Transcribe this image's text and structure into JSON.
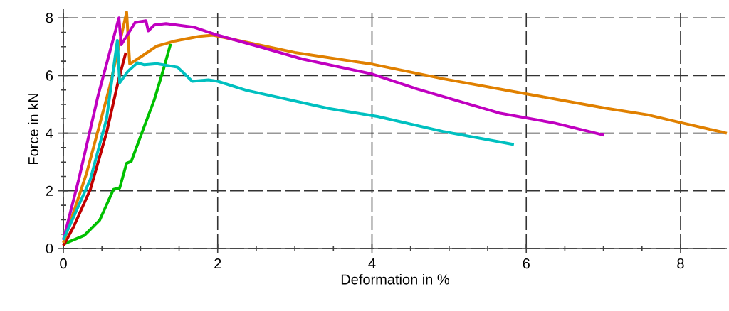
{
  "chart_data": {
    "type": "line",
    "xlabel": "Deformation in %",
    "ylabel": "Force in kN",
    "xlim": [
      0,
      8.6
    ],
    "ylim": [
      0,
      8.3
    ],
    "xticks": [
      0,
      2,
      4,
      6,
      8
    ],
    "yticks": [
      0,
      2,
      4,
      6,
      8
    ],
    "grid": true,
    "marker": "none",
    "line_style": "solid",
    "series": [
      {
        "color": "#00c000",
        "x": [
          0,
          0.27,
          0.47,
          0.65,
          0.73,
          0.82,
          0.88,
          1.02,
          1.18,
          1.3,
          1.39
        ],
        "values": [
          0.15,
          0.45,
          0.98,
          2.05,
          2.1,
          2.96,
          3.02,
          4.03,
          5.17,
          6.24,
          7.1
        ]
      },
      {
        "color": "#c00000",
        "x": [
          0,
          0.13,
          0.35,
          0.56,
          0.72,
          0.81
        ],
        "values": [
          0.1,
          0.74,
          2.05,
          4.02,
          5.9,
          6.8
        ]
      },
      {
        "color": "#e08000",
        "x": [
          0,
          0.3,
          0.6,
          0.82,
          0.86,
          0.96,
          1.21,
          1.45,
          1.76,
          1.94,
          3.0,
          3.99,
          4.92,
          5.99,
          7.05,
          7.57,
          8.03,
          8.6
        ],
        "values": [
          0.2,
          2.6,
          5.6,
          8.2,
          6.4,
          6.57,
          7.02,
          7.2,
          7.36,
          7.4,
          6.8,
          6.4,
          5.89,
          5.37,
          4.86,
          4.64,
          4.35,
          4.0
        ]
      },
      {
        "color": "#c000c0",
        "x": [
          0,
          0.2,
          0.45,
          0.72,
          0.75,
          0.93,
          1.07,
          1.1,
          1.18,
          1.33,
          1.7,
          2.0,
          2.58,
          3.1,
          3.99,
          4.58,
          5.65,
          6.37,
          7.01
        ],
        "values": [
          0.3,
          2.4,
          5.3,
          8.0,
          7.07,
          7.84,
          7.9,
          7.55,
          7.75,
          7.8,
          7.67,
          7.4,
          6.97,
          6.57,
          6.06,
          5.54,
          4.7,
          4.35,
          3.93
        ]
      },
      {
        "color": "#00c0c0",
        "x": [
          0,
          0.35,
          0.56,
          0.7,
          0.73,
          0.84,
          0.96,
          1.05,
          1.21,
          1.48,
          1.67,
          1.88,
          2.0,
          2.37,
          3.44,
          4.07,
          4.92,
          5.84
        ],
        "values": [
          0.3,
          2.4,
          4.5,
          7.22,
          5.75,
          6.16,
          6.44,
          6.37,
          6.41,
          6.29,
          5.8,
          5.85,
          5.8,
          5.49,
          4.86,
          4.58,
          4.06,
          3.61
        ]
      }
    ]
  }
}
